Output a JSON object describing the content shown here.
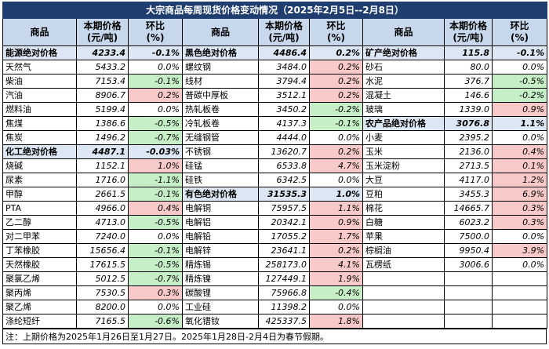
{
  "title": "大宗商品每周现货价格变动情况（2025年2月5日--2月8日）",
  "headers": {
    "commodity": "商品",
    "price": "本期价格\n(元/吨)",
    "change": "环比\n(%)"
  },
  "columns": [
    [
      {
        "name": "能源绝对价格",
        "price": "4233.4",
        "change": "-0.1%",
        "index": true
      },
      {
        "name": "天然气",
        "price": "5433.2",
        "change": "0.0%"
      },
      {
        "name": "柴油",
        "price": "7153.4",
        "change": "-0.1%",
        "trend": "down"
      },
      {
        "name": "汽油",
        "price": "8906.7",
        "change": "0.2%",
        "trend": "up"
      },
      {
        "name": "燃料油",
        "price": "5199.4",
        "change": "0.0%"
      },
      {
        "name": "焦煤",
        "price": "1386.6",
        "change": "-0.5%",
        "trend": "down"
      },
      {
        "name": "焦炭",
        "price": "1496.2",
        "change": "-0.7%",
        "trend": "down"
      },
      {
        "name": "化工绝对价格",
        "price": "4487.1",
        "change": "-0.03%",
        "index": true
      },
      {
        "name": "烧碱",
        "price": "1152.1",
        "change": "1.0%",
        "trend": "up"
      },
      {
        "name": "尿素",
        "price": "1716.0",
        "change": "-1.1%",
        "trend": "down"
      },
      {
        "name": "甲醇",
        "price": "2661.5",
        "change": "-0.1%",
        "trend": "down"
      },
      {
        "name": "PTA",
        "price": "4966.0",
        "change": "0.4%",
        "trend": "up"
      },
      {
        "name": "乙二醇",
        "price": "4713.0",
        "change": "-0.5%",
        "trend": "down"
      },
      {
        "name": "对二甲苯",
        "price": "7240.0",
        "change": "0.0%"
      },
      {
        "name": "丁苯橡胶",
        "price": "15656.4",
        "change": "-0.1%",
        "trend": "down"
      },
      {
        "name": "天然橡胶",
        "price": "17615.5",
        "change": "-0.5%",
        "trend": "down"
      },
      {
        "name": "聚氯乙烯",
        "price": "5012.5",
        "change": "-0.7%",
        "trend": "down"
      },
      {
        "name": "聚丙烯",
        "price": "7530.5",
        "change": "0.3%",
        "trend": "up"
      },
      {
        "name": "聚乙烯",
        "price": "8200.0",
        "change": "0.0%"
      },
      {
        "name": "涤纶短纤",
        "price": "7165.5",
        "change": "-0.6%",
        "trend": "down"
      }
    ],
    [
      {
        "name": "黑色绝对价格",
        "price": "4486.4",
        "change": "0.2%",
        "index": true
      },
      {
        "name": "螺纹钢",
        "price": "3484.0",
        "change": "0.2%",
        "trend": "up"
      },
      {
        "name": "线材",
        "price": "3794.4",
        "change": "0.2%",
        "trend": "up"
      },
      {
        "name": "普碳中厚板",
        "price": "3512.1",
        "change": "0.2%",
        "trend": "up"
      },
      {
        "name": "热轧板卷",
        "price": "3450.2",
        "change": "-0.2%",
        "trend": "down"
      },
      {
        "name": "冷轧板卷",
        "price": "4137.3",
        "change": "-0.1%",
        "trend": "down"
      },
      {
        "name": "无缝钢管",
        "price": "4444.0",
        "change": "0.0%"
      },
      {
        "name": "不锈钢",
        "price": "13620.7",
        "change": "0.2%",
        "trend": "up"
      },
      {
        "name": "硅锰",
        "price": "6533.8",
        "change": "4.7%",
        "trend": "up"
      },
      {
        "name": "硅铁",
        "price": "6342.5",
        "change": "0.0%"
      },
      {
        "name": "有色绝对价格",
        "price": "31535.3",
        "change": "1.0%",
        "index": true
      },
      {
        "name": "电解铜",
        "price": "75957.5",
        "change": "1.1%",
        "trend": "up"
      },
      {
        "name": "电解铝",
        "price": "20342.1",
        "change": "0.9%",
        "trend": "up"
      },
      {
        "name": "电解铅",
        "price": "17055.2",
        "change": "1.7%",
        "trend": "up"
      },
      {
        "name": "电解锌",
        "price": "23641.1",
        "change": "0.2%",
        "trend": "up"
      },
      {
        "name": "精炼锡",
        "price": "258173.0",
        "change": "4.1%",
        "trend": "up"
      },
      {
        "name": "精炼镍",
        "price": "127449.1",
        "change": "1.9%",
        "trend": "up"
      },
      {
        "name": "碳酸锂",
        "price": "75966.8",
        "change": "-0.4%",
        "trend": "down"
      },
      {
        "name": "工业硅",
        "price": "11398.2",
        "change": "0.0%"
      },
      {
        "name": "氧化镨钕",
        "price": "425337.5",
        "change": "1.8%",
        "trend": "up"
      }
    ],
    [
      {
        "name": "矿产绝对价格",
        "price": "115.8",
        "change": "-0.1%",
        "index": true
      },
      {
        "name": "砂石",
        "price": "80.0",
        "change": "0.0%"
      },
      {
        "name": "水泥",
        "price": "376.7",
        "change": "-0.5%",
        "trend": "down"
      },
      {
        "name": "混凝土",
        "price": "146.6",
        "change": "-0.2%",
        "trend": "down"
      },
      {
        "name": "玻璃",
        "price": "1339.0",
        "change": "0.9%",
        "trend": "up"
      },
      {
        "name": "农产品绝对价格",
        "price": "3076.8",
        "change": "1.1%",
        "index": true
      },
      {
        "name": "小麦",
        "price": "2395.2",
        "change": "0.0%"
      },
      {
        "name": "玉米",
        "price": "2136.0",
        "change": "0.4%",
        "trend": "up"
      },
      {
        "name": "玉米淀粉",
        "price": "2713.5",
        "change": "0.1%",
        "trend": "up"
      },
      {
        "name": "大豆",
        "price": "4117.0",
        "change": "1.2%",
        "trend": "up"
      },
      {
        "name": "豆粕",
        "price": "3455.3",
        "change": "6.9%",
        "trend": "up"
      },
      {
        "name": "棉花",
        "price": "14665.7",
        "change": "0.3%",
        "trend": "up"
      },
      {
        "name": "白糖",
        "price": "6023.2",
        "change": "0.3%",
        "trend": "up"
      },
      {
        "name": "苹果",
        "price": "7500.0",
        "change": "0.0%"
      },
      {
        "name": "棕榈油",
        "price": "9950.4",
        "change": "3.9%",
        "trend": "up"
      },
      {
        "name": "瓦楞纸",
        "price": "3006.6",
        "change": "0.0%"
      },
      {
        "name": "",
        "price": "",
        "change": ""
      },
      {
        "name": "",
        "price": "",
        "change": ""
      },
      {
        "name": "",
        "price": "",
        "change": ""
      },
      {
        "name": "",
        "price": "",
        "change": ""
      }
    ]
  ],
  "note": "注：上期价格为2025年1月26日至1月27日。2025年1月28日-2月4日为春节假期。",
  "colors": {
    "title_bg": "#1f3d6e",
    "header_bg": "#c7d7ec",
    "index_bg": "#dde7f4",
    "up_bg": "#f8c9c9",
    "down_bg": "#c6eec7"
  }
}
